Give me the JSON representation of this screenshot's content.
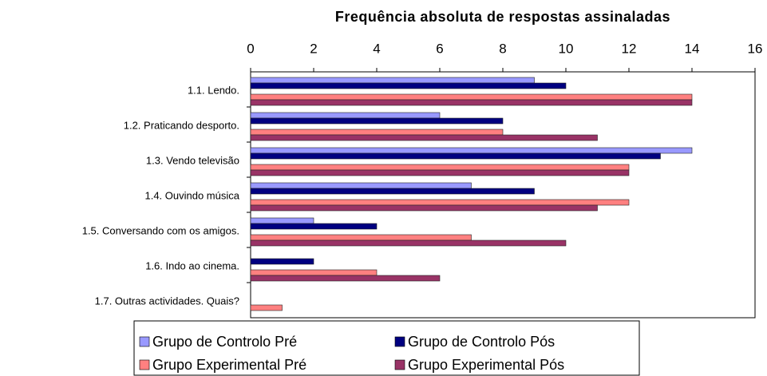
{
  "chart_data": {
    "type": "hbar",
    "title": "Frequência absoluta de respostas assinaladas",
    "categories": [
      "1.1. Lendo.",
      "1.2. Praticando desporto.",
      "1.3. Vendo televisão",
      "1.4. Ouvindo música",
      "1.5. Conversando com os amigos.",
      "1.6. Indo ao cinema.",
      "1.7. Outras actividades. Quais?"
    ],
    "series": [
      {
        "name": "Grupo de Controlo Pré",
        "color": "#9999ff",
        "values": [
          9,
          6,
          14,
          7,
          2,
          0,
          0
        ]
      },
      {
        "name": "Grupo de Controlo Pós",
        "color": "#000080",
        "values": [
          10,
          8,
          13,
          9,
          4,
          2,
          0
        ]
      },
      {
        "name": "Grupo Experimental Pré",
        "color": "#ff8080",
        "values": [
          14,
          8,
          12,
          12,
          7,
          4,
          1
        ]
      },
      {
        "name": "Grupo Experimental Pós",
        "color": "#993366",
        "values": [
          14,
          11,
          12,
          11,
          10,
          6,
          0
        ]
      }
    ],
    "xlim": [
      0,
      16
    ],
    "xticks": [
      0,
      2,
      4,
      6,
      8,
      10,
      12,
      14,
      16
    ],
    "grid": false,
    "legend": "bottom"
  }
}
